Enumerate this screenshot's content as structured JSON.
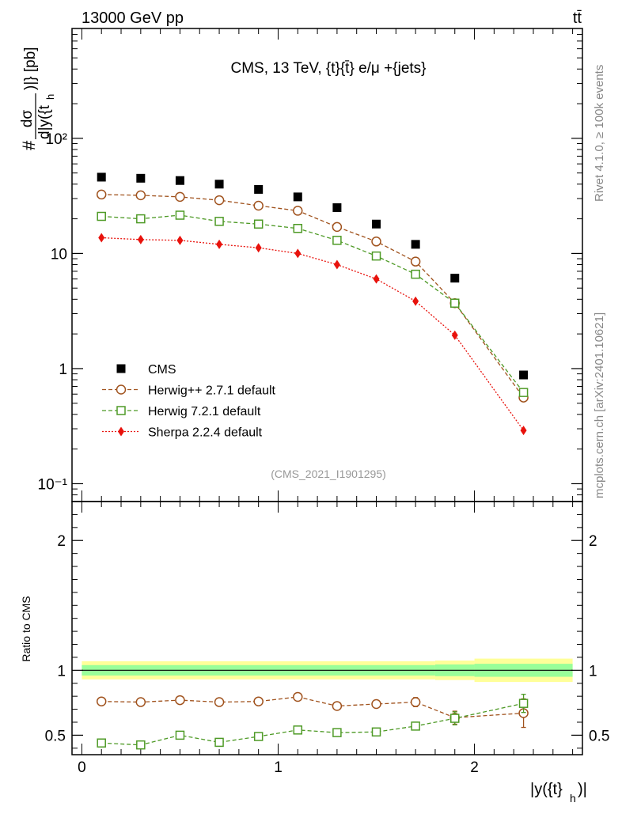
{
  "header": {
    "left": "13000 GeV pp",
    "right": "tt̄"
  },
  "side": {
    "rivet": "Rivet 4.1.0, ≥ 100k events",
    "mcplots": "mcplots.cern.ch [arXiv:2401.10621]"
  },
  "chart_data": [
    {
      "type": "scatter",
      "panel": "main",
      "title": "CMS, 13 TeV, {t}{t̄} e/μ +{jets}",
      "analysis": "(CMS_2021_I1901295)",
      "ylabel_num": "dσ",
      "ylabel_den": "d|y({t",
      "ylabel_den_sub": "h",
      "ylabel_tail": ")|} [pb]",
      "ylabel_prefix": "#",
      "yscale": "log",
      "ylim": [
        0.07,
        900
      ],
      "xlim": [
        -0.05,
        2.55
      ],
      "ytick_labels": [
        "10⁻¹",
        "1",
        "10",
        "10²"
      ],
      "legend_position": "bottom-left",
      "x": [
        0.1,
        0.3,
        0.5,
        0.7,
        0.9,
        1.1,
        1.3,
        1.5,
        1.7,
        1.9,
        2.25
      ],
      "series": [
        {
          "name": "CMS",
          "style": "square",
          "color": "#000000",
          "values": [
            46,
            45,
            43,
            40,
            36,
            31,
            25,
            18,
            12,
            6.1,
            0.88
          ]
        },
        {
          "name": "Herwig++ 2.7.1 default",
          "style": "circle",
          "color": "#a0521d",
          "values": [
            32.5,
            32,
            31,
            29,
            26,
            23.5,
            17,
            12.7,
            8.5,
            3.7,
            0.56
          ]
        },
        {
          "name": "Herwig 7.2.1 default",
          "style": "opensquare",
          "color": "#4e9a26",
          "values": [
            21,
            20,
            21.5,
            19,
            18,
            16.5,
            13,
            9.5,
            6.6,
            3.7,
            0.62
          ]
        },
        {
          "name": "Sherpa 2.2.4 default",
          "style": "diamond",
          "color": "#e8120c",
          "values": [
            13.7,
            13.2,
            13,
            12,
            11.2,
            10,
            8,
            6,
            3.85,
            1.95,
            0.29
          ]
        }
      ]
    },
    {
      "type": "scatter",
      "panel": "ratio",
      "ylabel": "Ratio to CMS",
      "xlabel": "|y({t}",
      "xlabel_sub": "h",
      "xlabel_tail": ")|",
      "ylim": [
        0.35,
        2.3
      ],
      "xlim": [
        -0.05,
        2.55
      ],
      "ytick_labels": [
        "0.5",
        "1",
        "2"
      ],
      "xtick_labels": [
        "0",
        "1",
        "2"
      ],
      "band_edges": [
        0,
        1.8,
        2.0,
        2.5
      ],
      "band_yellow": [
        0.07,
        0.075,
        0.09
      ],
      "band_green": [
        0.04,
        0.045,
        0.05
      ],
      "x": [
        0.1,
        0.3,
        0.5,
        0.7,
        0.9,
        1.1,
        1.3,
        1.5,
        1.7,
        1.9,
        2.25
      ],
      "series": [
        {
          "name": "Herwig++ 2.7.1 default",
          "style": "circle",
          "color": "#a0521d",
          "values": [
            0.76,
            0.755,
            0.77,
            0.755,
            0.76,
            0.795,
            0.725,
            0.74,
            0.755,
            0.635,
            0.67
          ],
          "errors": [
            0.01,
            0.01,
            0.01,
            0.01,
            0.012,
            0.015,
            0.02,
            0.025,
            0.035,
            0.05,
            0.11
          ]
        },
        {
          "name": "Herwig 7.2.1 default",
          "style": "opensquare",
          "color": "#4e9a26",
          "values": [
            0.44,
            0.425,
            0.5,
            0.445,
            0.49,
            0.54,
            0.52,
            0.525,
            0.57,
            0.63,
            0.745
          ],
          "errors": [
            0.01,
            0.01,
            0.012,
            0.01,
            0.012,
            0.015,
            0.018,
            0.022,
            0.03,
            0.05,
            0.07
          ]
        }
      ]
    }
  ]
}
